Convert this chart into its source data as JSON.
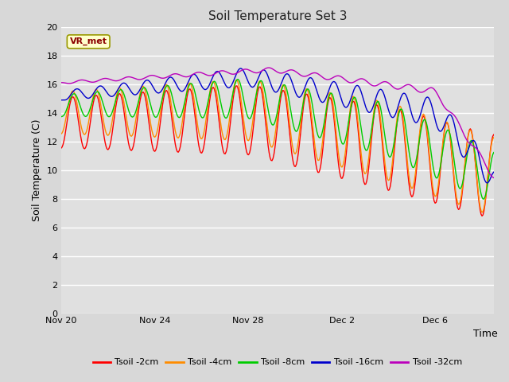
{
  "title": "Soil Temperature Set 3",
  "xlabel": "Time",
  "ylabel": "Soil Temperature (C)",
  "ylim": [
    0,
    20
  ],
  "yticks": [
    0,
    2,
    4,
    6,
    8,
    10,
    12,
    14,
    16,
    18,
    20
  ],
  "bg_color": "#d8d8d8",
  "plot_bg": "#e0e0e0",
  "grid_color": "#ffffff",
  "annotation_text": "VR_met",
  "annotation_box_color": "#ffffcc",
  "annotation_text_color": "#8b0000",
  "series_colors": {
    "tsoil_2cm": "#ff0000",
    "tsoil_4cm": "#ff8c00",
    "tsoil_8cm": "#00cc00",
    "tsoil_16cm": "#0000cc",
    "tsoil_32cm": "#bb00bb"
  },
  "legend_labels": [
    "Tsoil -2cm",
    "Tsoil -4cm",
    "Tsoil -8cm",
    "Tsoil -16cm",
    "Tsoil -32cm"
  ],
  "num_days": 18.5,
  "figsize": [
    6.4,
    4.8
  ],
  "dpi": 100
}
